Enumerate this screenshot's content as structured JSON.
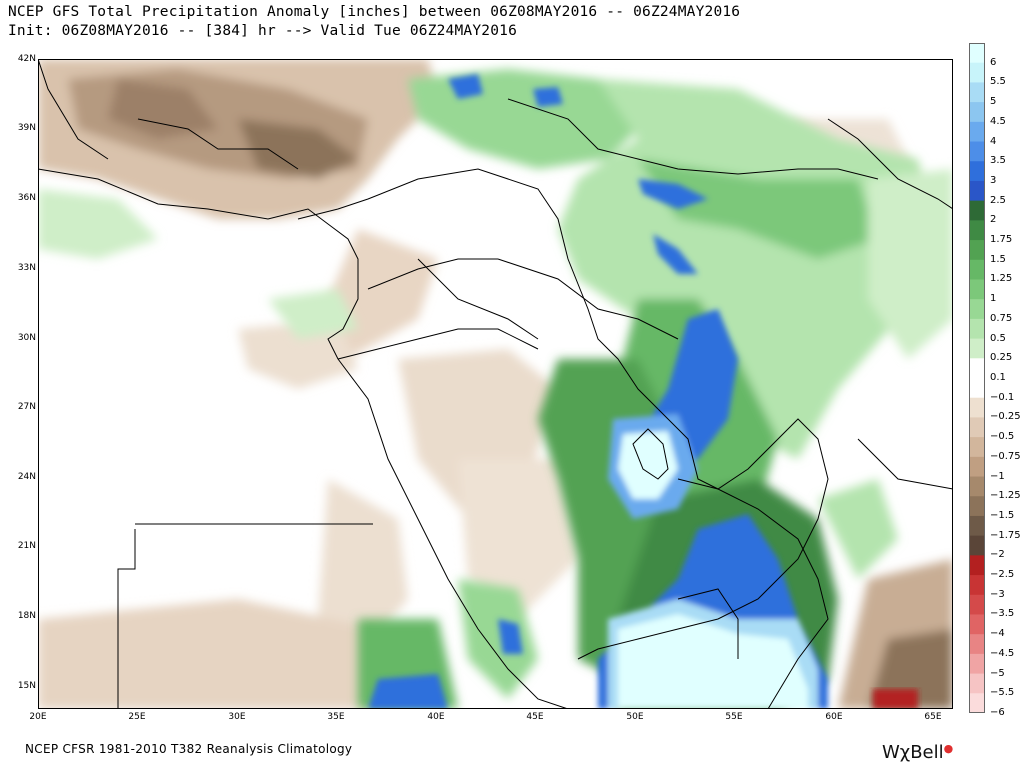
{
  "header": {
    "line1": "NCEP GFS Total Precipitation Anomaly [inches] between 06Z08MAY2016 -- 06Z24MAY2016",
    "line2": "Init: 06Z08MAY2016 -- [384] hr --> Valid Tue 06Z24MAY2016"
  },
  "axes": {
    "lat_labels": [
      "42N",
      "39N",
      "36N",
      "33N",
      "30N",
      "27N",
      "24N",
      "21N",
      "18N",
      "15N"
    ],
    "lon_labels": [
      "20E",
      "25E",
      "30E",
      "35E",
      "40E",
      "45E",
      "50E",
      "55E",
      "60E",
      "65E"
    ],
    "lat_range": [
      14,
      42
    ],
    "lon_range": [
      20,
      66
    ]
  },
  "colorbar": {
    "labels": [
      "6",
      "5.5",
      "5",
      "4.5",
      "4",
      "3.5",
      "3",
      "2.5",
      "2",
      "1.75",
      "1.5",
      "1.25",
      "1",
      "0.75",
      "0.5",
      "0.25",
      "0.1",
      "−0.1",
      "−0.25",
      "−0.5",
      "−0.75",
      "−1",
      "−1.25",
      "−1.5",
      "−1.75",
      "−2",
      "−2.5",
      "−3",
      "−3.5",
      "−4",
      "−4.5",
      "−5",
      "−5.5",
      "−6"
    ],
    "colors": [
      "#e0ffff",
      "#c8f4fa",
      "#a9dcf5",
      "#8cc6f0",
      "#6aaaee",
      "#4d8ee8",
      "#2f6fdc",
      "#2a56c8",
      "#2e6a36",
      "#3f8a44",
      "#52a252",
      "#66b866",
      "#7cc87a",
      "#98d894",
      "#b4e4ae",
      "#cfeec8",
      "#ffffff",
      "#ffffff",
      "#eee0d0",
      "#e0cab6",
      "#d2b69c",
      "#c09f82",
      "#a6896c",
      "#8c735a",
      "#6e5a48",
      "#5a4538",
      "#b32020",
      "#c83434",
      "#d44a4a",
      "#e06464",
      "#e88484",
      "#f0a4a4",
      "#f6c4c4",
      "#fbdcdc"
    ]
  },
  "footer": {
    "source": "NCEP CFSR 1981-2010 T382 Reanalysis Climatology",
    "logo": "WχBell"
  }
}
